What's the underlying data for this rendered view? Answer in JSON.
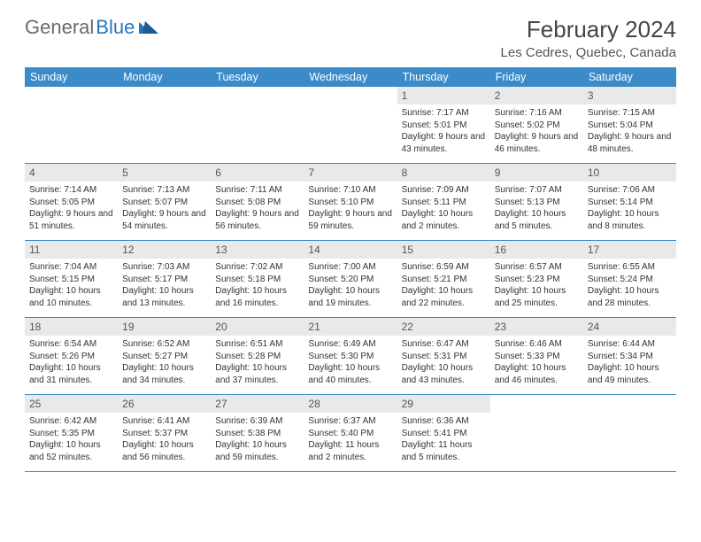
{
  "brand": {
    "part1": "General",
    "part2": "Blue"
  },
  "title": "February 2024",
  "location": "Les Cedres, Quebec, Canada",
  "colors": {
    "header_bar": "#3b8bc9",
    "header_text": "#ffffff",
    "date_strip_bg": "#e9e9e9",
    "text": "#333333",
    "rule": "#3b8bc9",
    "brand_grey": "#6b6b6b",
    "brand_blue": "#2776bb"
  },
  "weekdays": [
    "Sunday",
    "Monday",
    "Tuesday",
    "Wednesday",
    "Thursday",
    "Friday",
    "Saturday"
  ],
  "layout": {
    "cols": 7,
    "rows": 5,
    "first_weekday_index": 4
  },
  "days": [
    {
      "date": 1,
      "sunrise": "7:17 AM",
      "sunset": "5:01 PM",
      "daylight": "9 hours and 43 minutes."
    },
    {
      "date": 2,
      "sunrise": "7:16 AM",
      "sunset": "5:02 PM",
      "daylight": "9 hours and 46 minutes."
    },
    {
      "date": 3,
      "sunrise": "7:15 AM",
      "sunset": "5:04 PM",
      "daylight": "9 hours and 48 minutes."
    },
    {
      "date": 4,
      "sunrise": "7:14 AM",
      "sunset": "5:05 PM",
      "daylight": "9 hours and 51 minutes."
    },
    {
      "date": 5,
      "sunrise": "7:13 AM",
      "sunset": "5:07 PM",
      "daylight": "9 hours and 54 minutes."
    },
    {
      "date": 6,
      "sunrise": "7:11 AM",
      "sunset": "5:08 PM",
      "daylight": "9 hours and 56 minutes."
    },
    {
      "date": 7,
      "sunrise": "7:10 AM",
      "sunset": "5:10 PM",
      "daylight": "9 hours and 59 minutes."
    },
    {
      "date": 8,
      "sunrise": "7:09 AM",
      "sunset": "5:11 PM",
      "daylight": "10 hours and 2 minutes."
    },
    {
      "date": 9,
      "sunrise": "7:07 AM",
      "sunset": "5:13 PM",
      "daylight": "10 hours and 5 minutes."
    },
    {
      "date": 10,
      "sunrise": "7:06 AM",
      "sunset": "5:14 PM",
      "daylight": "10 hours and 8 minutes."
    },
    {
      "date": 11,
      "sunrise": "7:04 AM",
      "sunset": "5:15 PM",
      "daylight": "10 hours and 10 minutes."
    },
    {
      "date": 12,
      "sunrise": "7:03 AM",
      "sunset": "5:17 PM",
      "daylight": "10 hours and 13 minutes."
    },
    {
      "date": 13,
      "sunrise": "7:02 AM",
      "sunset": "5:18 PM",
      "daylight": "10 hours and 16 minutes."
    },
    {
      "date": 14,
      "sunrise": "7:00 AM",
      "sunset": "5:20 PM",
      "daylight": "10 hours and 19 minutes."
    },
    {
      "date": 15,
      "sunrise": "6:59 AM",
      "sunset": "5:21 PM",
      "daylight": "10 hours and 22 minutes."
    },
    {
      "date": 16,
      "sunrise": "6:57 AM",
      "sunset": "5:23 PM",
      "daylight": "10 hours and 25 minutes."
    },
    {
      "date": 17,
      "sunrise": "6:55 AM",
      "sunset": "5:24 PM",
      "daylight": "10 hours and 28 minutes."
    },
    {
      "date": 18,
      "sunrise": "6:54 AM",
      "sunset": "5:26 PM",
      "daylight": "10 hours and 31 minutes."
    },
    {
      "date": 19,
      "sunrise": "6:52 AM",
      "sunset": "5:27 PM",
      "daylight": "10 hours and 34 minutes."
    },
    {
      "date": 20,
      "sunrise": "6:51 AM",
      "sunset": "5:28 PM",
      "daylight": "10 hours and 37 minutes."
    },
    {
      "date": 21,
      "sunrise": "6:49 AM",
      "sunset": "5:30 PM",
      "daylight": "10 hours and 40 minutes."
    },
    {
      "date": 22,
      "sunrise": "6:47 AM",
      "sunset": "5:31 PM",
      "daylight": "10 hours and 43 minutes."
    },
    {
      "date": 23,
      "sunrise": "6:46 AM",
      "sunset": "5:33 PM",
      "daylight": "10 hours and 46 minutes."
    },
    {
      "date": 24,
      "sunrise": "6:44 AM",
      "sunset": "5:34 PM",
      "daylight": "10 hours and 49 minutes."
    },
    {
      "date": 25,
      "sunrise": "6:42 AM",
      "sunset": "5:35 PM",
      "daylight": "10 hours and 52 minutes."
    },
    {
      "date": 26,
      "sunrise": "6:41 AM",
      "sunset": "5:37 PM",
      "daylight": "10 hours and 56 minutes."
    },
    {
      "date": 27,
      "sunrise": "6:39 AM",
      "sunset": "5:38 PM",
      "daylight": "10 hours and 59 minutes."
    },
    {
      "date": 28,
      "sunrise": "6:37 AM",
      "sunset": "5:40 PM",
      "daylight": "11 hours and 2 minutes."
    },
    {
      "date": 29,
      "sunrise": "6:36 AM",
      "sunset": "5:41 PM",
      "daylight": "11 hours and 5 minutes."
    }
  ],
  "labels": {
    "sunrise": "Sunrise:",
    "sunset": "Sunset:",
    "daylight": "Daylight:"
  }
}
